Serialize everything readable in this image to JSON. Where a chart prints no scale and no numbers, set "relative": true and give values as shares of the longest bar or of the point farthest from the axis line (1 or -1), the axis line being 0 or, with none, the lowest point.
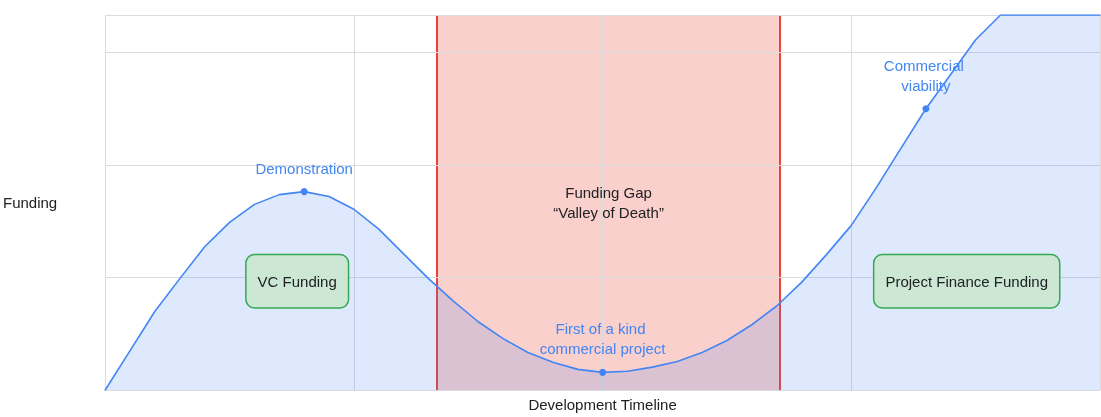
{
  "chart_data": {
    "type": "area",
    "relative": true,
    "xlabel": "Development Timeline",
    "ylabel": "Funding",
    "categories": [
      null,
      null,
      null,
      null,
      null,
      null,
      null,
      null,
      null,
      null,
      null,
      null,
      null,
      null,
      null,
      null,
      null,
      null,
      null,
      null,
      null,
      null,
      null,
      null,
      null,
      null,
      null,
      null,
      null,
      null,
      null,
      null,
      null,
      null,
      null,
      null,
      null,
      null,
      null,
      null,
      null
    ],
    "series": [
      {
        "color": "#4285f4",
        "values": [
          0,
          0.105,
          0.21,
          0.297,
          0.382,
          0.447,
          0.495,
          0.521,
          0.529,
          0.516,
          0.482,
          0.429,
          0.363,
          0.297,
          0.237,
          0.182,
          0.137,
          0.1,
          0.074,
          0.055,
          0.047,
          0.05,
          0.061,
          0.076,
          0.1,
          0.132,
          0.174,
          0.224,
          0.287,
          0.361,
          0.439,
          0.539,
          0.645,
          0.75,
          0.842,
          0.934,
          1,
          1,
          1,
          1,
          1
        ]
      }
    ],
    "tick_labels": false,
    "grid": true,
    "marker": "none",
    "line_style": "solid",
    "annotations": [
      "VC Funding",
      "Project Finance Funding",
      "Funding Gap\n“Valley of Death”",
      {
        "text": "Demonstration",
        "y": 0.529
      },
      {
        "text": "First of a kind commercial project",
        "y": 0.047
      },
      {
        "text": "Commercial viability",
        "y": 0.75
      }
    ]
  }
}
